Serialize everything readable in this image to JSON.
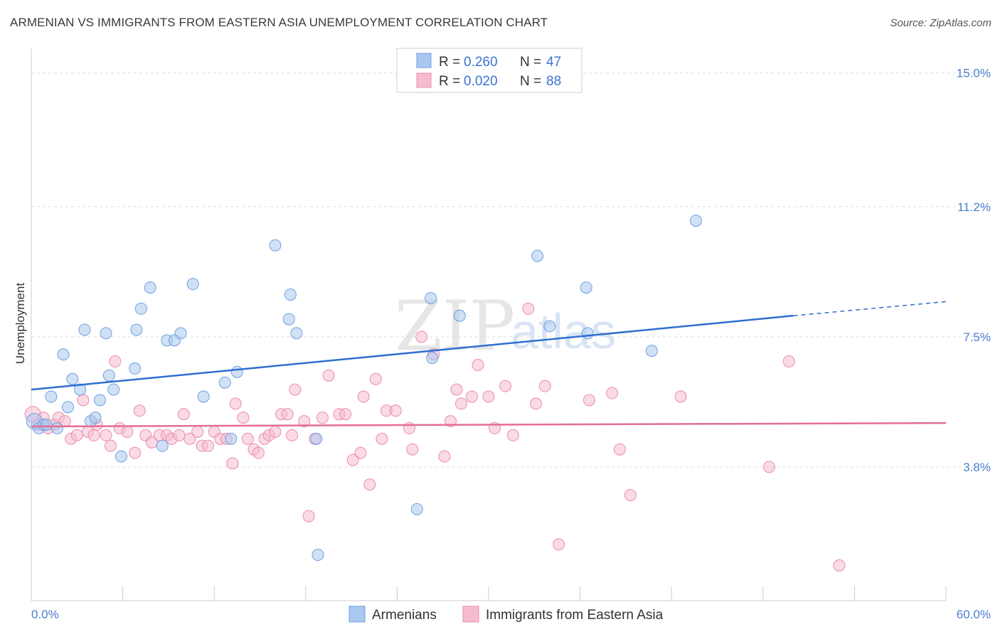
{
  "header": {
    "title": "ARMENIAN VS IMMIGRANTS FROM EASTERN ASIA UNEMPLOYMENT CORRELATION CHART",
    "source": "Source: ZipAtlas.com"
  },
  "watermark": {
    "zip": "ZIP",
    "atlas": "atlas"
  },
  "colors": {
    "blue_fill": "#a9c8ef",
    "blue_stroke": "#6f9fe0",
    "blue_line": "#2e6fd0",
    "pink_fill": "#f6bccd",
    "pink_stroke": "#ea8cab",
    "pink_line": "#e46d96",
    "tick_text": "#4a7fd0",
    "grid": "#dddddd"
  },
  "legend": {
    "rows": [
      {
        "r_label": "R = ",
        "r_value": "0.260",
        "n_label": "N = ",
        "n_value": "47"
      },
      {
        "r_label": "R = ",
        "r_value": "0.020",
        "n_label": "N = ",
        "n_value": "88"
      }
    ]
  },
  "chart_data": {
    "type": "scatter",
    "title": "ARMENIAN VS IMMIGRANTS FROM EASTERN ASIA UNEMPLOYMENT CORRELATION CHART",
    "xlabel": "",
    "ylabel": "Unemployment",
    "xlim": [
      0,
      60
    ],
    "ylim": [
      0,
      15.5
    ],
    "x_tick_labels": [
      "0.0%",
      "60.0%"
    ],
    "y_ticks": [
      3.8,
      7.5,
      11.2,
      15.0
    ],
    "y_tick_labels": [
      "3.8%",
      "7.5%",
      "11.2%",
      "15.0%"
    ],
    "grid": true,
    "legend_position": "top-center",
    "series": [
      {
        "name": "Armenians",
        "color": "#a9c8ef",
        "r": 0.26,
        "n": 47,
        "trend": {
          "x0": 0,
          "y0": 6.0,
          "x1": 50,
          "y1": 8.1,
          "dash_to_x": 60,
          "dash_to_y": 8.5
        },
        "points": [
          [
            0.2,
            5.1
          ],
          [
            0.5,
            4.9
          ],
          [
            0.8,
            5.0
          ],
          [
            1.0,
            5.0
          ],
          [
            1.3,
            5.8
          ],
          [
            1.7,
            4.9
          ],
          [
            2.1,
            7.0
          ],
          [
            2.4,
            5.5
          ],
          [
            2.7,
            6.3
          ],
          [
            3.2,
            6.0
          ],
          [
            3.5,
            7.7
          ],
          [
            3.9,
            5.1
          ],
          [
            4.2,
            5.2
          ],
          [
            4.5,
            5.7
          ],
          [
            4.9,
            7.6
          ],
          [
            5.1,
            6.4
          ],
          [
            5.4,
            6.0
          ],
          [
            5.9,
            4.1
          ],
          [
            6.9,
            7.7
          ],
          [
            6.8,
            6.6
          ],
          [
            7.2,
            8.3
          ],
          [
            7.8,
            8.9
          ],
          [
            8.6,
            4.4
          ],
          [
            8.9,
            7.4
          ],
          [
            9.4,
            7.4
          ],
          [
            9.8,
            7.6
          ],
          [
            10.6,
            9.0
          ],
          [
            11.3,
            5.8
          ],
          [
            12.7,
            6.2
          ],
          [
            13.5,
            6.5
          ],
          [
            13.1,
            4.6
          ],
          [
            16.0,
            10.1
          ],
          [
            16.9,
            8.0
          ],
          [
            17.0,
            8.7
          ],
          [
            17.4,
            7.6
          ],
          [
            18.7,
            4.6
          ],
          [
            18.8,
            1.3
          ],
          [
            25.3,
            2.6
          ],
          [
            26.2,
            8.6
          ],
          [
            26.3,
            6.9
          ],
          [
            28.1,
            8.1
          ],
          [
            33.2,
            9.8
          ],
          [
            34.0,
            7.8
          ],
          [
            36.4,
            8.9
          ],
          [
            36.5,
            7.6
          ],
          [
            40.7,
            7.1
          ],
          [
            43.6,
            10.8
          ]
        ]
      },
      {
        "name": "Immigrants from Eastern Asia",
        "color": "#f6bccd",
        "r": 0.02,
        "n": 88,
        "trend": {
          "x0": 0,
          "y0": 4.95,
          "x1": 60,
          "y1": 5.05
        },
        "points": [
          [
            0.1,
            5.3
          ],
          [
            0.4,
            5.0
          ],
          [
            0.8,
            5.2
          ],
          [
            1.1,
            4.9
          ],
          [
            1.5,
            5.0
          ],
          [
            1.8,
            5.2
          ],
          [
            2.2,
            5.1
          ],
          [
            2.6,
            4.6
          ],
          [
            3.0,
            4.7
          ],
          [
            3.4,
            5.7
          ],
          [
            3.7,
            4.8
          ],
          [
            4.1,
            4.7
          ],
          [
            4.3,
            5.0
          ],
          [
            4.9,
            4.7
          ],
          [
            5.2,
            4.4
          ],
          [
            5.5,
            6.8
          ],
          [
            5.8,
            4.9
          ],
          [
            6.3,
            4.8
          ],
          [
            6.8,
            4.2
          ],
          [
            7.1,
            5.4
          ],
          [
            7.5,
            4.7
          ],
          [
            7.9,
            4.5
          ],
          [
            8.4,
            4.7
          ],
          [
            8.9,
            4.7
          ],
          [
            9.2,
            4.6
          ],
          [
            9.7,
            4.7
          ],
          [
            10.0,
            5.3
          ],
          [
            10.4,
            4.6
          ],
          [
            10.9,
            4.8
          ],
          [
            11.2,
            4.4
          ],
          [
            11.6,
            4.4
          ],
          [
            12.0,
            4.8
          ],
          [
            12.4,
            4.6
          ],
          [
            12.8,
            4.6
          ],
          [
            13.2,
            3.9
          ],
          [
            13.4,
            5.6
          ],
          [
            13.9,
            5.2
          ],
          [
            14.2,
            4.6
          ],
          [
            14.6,
            4.3
          ],
          [
            14.9,
            4.2
          ],
          [
            15.3,
            4.6
          ],
          [
            15.6,
            4.7
          ],
          [
            16.0,
            4.8
          ],
          [
            16.4,
            5.3
          ],
          [
            16.8,
            5.3
          ],
          [
            17.1,
            4.7
          ],
          [
            17.3,
            6.0
          ],
          [
            17.9,
            5.1
          ],
          [
            18.2,
            2.4
          ],
          [
            18.6,
            4.6
          ],
          [
            19.1,
            5.2
          ],
          [
            19.5,
            6.4
          ],
          [
            20.2,
            5.3
          ],
          [
            20.6,
            5.3
          ],
          [
            21.1,
            4.0
          ],
          [
            21.6,
            4.2
          ],
          [
            21.8,
            5.8
          ],
          [
            22.2,
            3.3
          ],
          [
            22.6,
            6.3
          ],
          [
            23.0,
            4.6
          ],
          [
            23.3,
            5.4
          ],
          [
            23.9,
            5.4
          ],
          [
            24.8,
            4.9
          ],
          [
            25.0,
            4.3
          ],
          [
            25.6,
            7.5
          ],
          [
            26.4,
            7.0
          ],
          [
            27.1,
            4.1
          ],
          [
            27.5,
            5.1
          ],
          [
            27.9,
            6.0
          ],
          [
            28.2,
            5.6
          ],
          [
            28.9,
            5.8
          ],
          [
            29.3,
            6.7
          ],
          [
            30.0,
            5.8
          ],
          [
            30.4,
            4.9
          ],
          [
            31.1,
            6.1
          ],
          [
            31.6,
            4.7
          ],
          [
            32.6,
            8.3
          ],
          [
            33.1,
            5.6
          ],
          [
            33.7,
            6.1
          ],
          [
            34.6,
            1.6
          ],
          [
            36.6,
            5.7
          ],
          [
            38.1,
            5.9
          ],
          [
            38.6,
            4.3
          ],
          [
            39.3,
            3.0
          ],
          [
            42.6,
            5.8
          ],
          [
            48.4,
            3.8
          ],
          [
            49.7,
            6.8
          ],
          [
            53.0,
            1.0
          ]
        ]
      }
    ]
  },
  "bottom_legend": [
    {
      "label": "Armenians"
    },
    {
      "label": "Immigrants from Eastern Asia"
    }
  ]
}
